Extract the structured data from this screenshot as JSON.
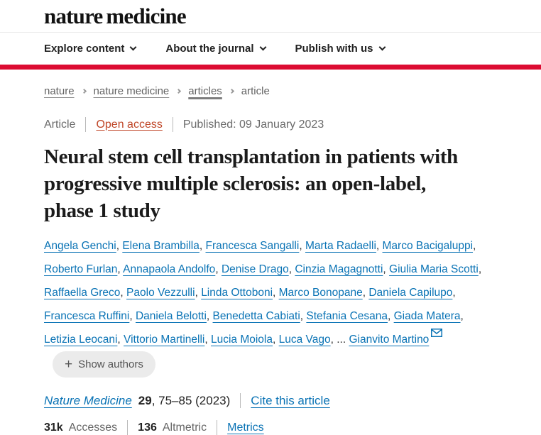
{
  "header": {
    "logo": "nature medicine",
    "nav": [
      {
        "label": "Explore content"
      },
      {
        "label": "About the journal"
      },
      {
        "label": "Publish with us"
      }
    ]
  },
  "breadcrumb": {
    "items": [
      {
        "label": "nature"
      },
      {
        "label": "nature medicine"
      },
      {
        "label": "articles"
      },
      {
        "label": "article"
      }
    ]
  },
  "article_meta": {
    "type": "Article",
    "access": "Open access",
    "published": "Published: 09 January 2023"
  },
  "title": {
    "lines": [
      "Neural stem cell transplantation in patients with",
      "progressive multiple sclerosis: an open-label,",
      "phase 1 study"
    ]
  },
  "authors": {
    "names": [
      "Angela Genchi",
      "Elena Brambilla",
      "Francesca Sangalli",
      "Marta Radaelli",
      "Marco Bacigaluppi",
      "Roberto Furlan",
      "Annapaola Andolfo",
      "Denise Drago",
      "Cinzia Magagnotti",
      "Giulia Maria Scotti",
      "Raffaella Greco",
      "Paolo Vezzulli",
      "Linda Ottoboni",
      "Marco Bonopane",
      "Daniela Capilupo",
      "Francesca Ruffini",
      "Daniela Belotti",
      "Benedetta Cabiati",
      "Stefania Cesana",
      "Giada Matera",
      "Letizia Leocani",
      "Vittorio Martinelli",
      "Lucia Moiola",
      "Luca Vago"
    ],
    "ellipsis": "...",
    "corresponding": "Gianvito Martino",
    "show_authors_label": "Show authors"
  },
  "icons": {
    "plus": "+"
  },
  "citation": {
    "journal": "Nature Medicine",
    "volume": "29",
    "pages": ", 75–85 (2023)",
    "cite_link": "Cite this article"
  },
  "metrics": {
    "accesses_count": "31k",
    "accesses_label": "Accesses",
    "altmetric_count": "136",
    "altmetric_label": "Altmetric",
    "metrics_link": "Metrics"
  },
  "colors": {
    "brand_red": "#dc0c32",
    "link_blue": "#0a73b5",
    "open_access": "#bf4526"
  }
}
